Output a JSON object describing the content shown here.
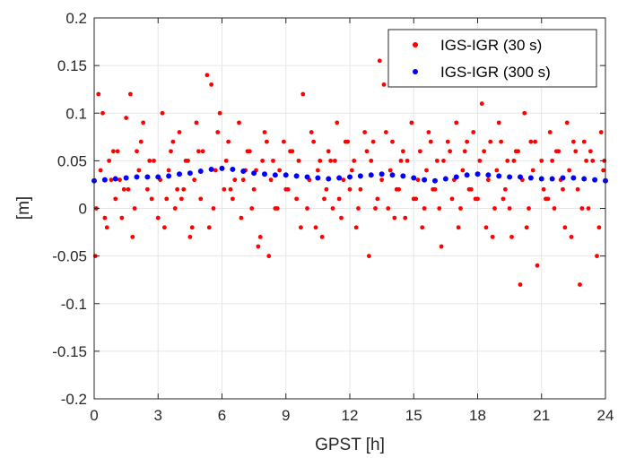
{
  "chart_data": {
    "type": "scatter",
    "title": "",
    "xlabel": "GPST [h]",
    "ylabel": "[m]",
    "xlim": [
      0,
      24
    ],
    "ylim": [
      -0.2,
      0.2
    ],
    "xticks": [
      0,
      3,
      6,
      9,
      12,
      15,
      18,
      21,
      24
    ],
    "xtick_labels": [
      "0",
      "3",
      "6",
      "9",
      "12",
      "15",
      "18",
      "21",
      "24"
    ],
    "yticks": [
      0.2,
      0.15,
      0.1,
      0.05,
      0,
      -0.05,
      -0.1,
      -0.15,
      -0.2
    ],
    "ytick_labels": [
      "0.2",
      "0.15",
      "0.1",
      "0.05",
      "0",
      "-0.05",
      "-0.1",
      "-0.15",
      "-0.2"
    ],
    "grid": true,
    "legend_position": "top-right",
    "series": [
      {
        "name": "IGS-IGR (30 s)",
        "color": "#ff0000",
        "marker": "dot",
        "sampling_interval_h": 0.008333,
        "x": [
          0.2,
          0.4,
          0.8,
          1.1,
          1.5,
          1.7,
          2.0,
          2.3,
          2.8,
          3.2,
          3.6,
          4.0,
          4.4,
          4.8,
          5.3,
          5.5,
          5.9,
          6.3,
          6.8,
          7.2,
          7.6,
          8.0,
          8.4,
          8.9,
          9.3,
          9.8,
          10.2,
          10.6,
          11.0,
          11.4,
          11.8,
          12.2,
          12.7,
          13.1,
          13.4,
          13.6,
          14.0,
          14.4,
          14.9,
          15.3,
          15.7,
          16.1,
          16.6,
          17.0,
          17.4,
          17.8,
          18.2,
          18.6,
          19.0,
          19.4,
          19.8,
          20.2,
          20.5,
          21.0,
          21.4,
          21.8,
          22.2,
          22.6,
          23.0,
          23.4,
          23.8,
          0.1,
          0.6,
          1.0,
          1.3,
          1.9,
          2.5,
          3.0,
          3.4,
          3.8,
          4.2,
          4.6,
          5.0,
          5.6,
          6.1,
          6.5,
          7.0,
          7.4,
          7.8,
          8.2,
          8.6,
          9.0,
          9.5,
          10.0,
          10.4,
          10.8,
          11.2,
          11.6,
          12.0,
          12.4,
          12.9,
          13.3,
          13.8,
          14.2,
          14.6,
          15.1,
          15.5,
          15.9,
          16.3,
          16.8,
          17.2,
          17.6,
          18.0,
          18.4,
          18.8,
          19.2,
          19.6,
          20.0,
          20.4,
          20.8,
          21.2,
          21.6,
          22.0,
          22.4,
          22.8,
          23.2,
          23.6,
          0.3,
          0.7,
          1.2,
          1.6,
          2.1,
          2.6,
          3.1,
          3.5,
          3.9,
          4.3,
          4.7,
          5.1,
          5.7,
          6.2,
          6.6,
          7.1,
          7.5,
          7.9,
          8.3,
          8.7,
          9.1,
          9.6,
          10.1,
          10.5,
          10.9,
          11.3,
          11.7,
          12.1,
          12.5,
          13.0,
          13.5,
          13.9,
          14.3,
          14.7,
          15.2,
          15.6,
          16.0,
          16.4,
          16.9,
          17.3,
          17.7,
          18.1,
          18.5,
          18.9,
          19.3,
          19.7,
          20.1,
          20.6,
          21.1,
          21.5,
          21.9,
          22.3,
          22.7,
          23.1,
          23.5,
          23.9,
          0.05,
          0.5,
          0.9,
          1.4,
          1.8,
          2.2,
          2.7,
          3.3,
          3.7,
          4.1,
          4.5,
          4.9,
          5.4,
          5.8,
          6.4,
          6.9,
          7.3,
          7.7,
          8.1,
          8.5,
          9.2,
          9.7,
          10.3,
          10.7,
          11.1,
          11.5,
          11.9,
          12.3,
          12.8,
          13.2,
          13.7,
          14.1,
          14.5,
          15.0,
          15.4,
          15.8,
          16.2,
          16.7,
          17.1,
          17.5,
          17.9,
          18.3,
          18.7,
          19.1,
          19.5,
          19.9,
          20.3,
          20.7,
          21.3,
          21.7,
          22.1,
          22.5,
          22.9,
          23.3,
          23.7,
          23.95
        ],
        "y": [
          0.12,
          0.1,
          0.03,
          0.06,
          0.095,
          0.12,
          0.06,
          0.09,
          0.05,
          0.1,
          0.06,
          0.08,
          0.05,
          0.09,
          0.14,
          0.13,
          0.1,
          0.07,
          0.09,
          0.06,
          0.04,
          0.08,
          0.05,
          0.07,
          0.06,
          0.12,
          0.08,
          0.05,
          0.06,
          0.09,
          0.07,
          0.05,
          0.08,
          0.07,
          0.155,
          0.13,
          0.07,
          0.05,
          0.09,
          0.06,
          0.08,
          0.05,
          0.07,
          0.09,
          0.06,
          0.08,
          0.11,
          0.07,
          0.09,
          0.05,
          0.06,
          0.1,
          0.07,
          0.05,
          0.08,
          0.06,
          0.09,
          0.06,
          0.07,
          0.05,
          0.08,
          0.0,
          -0.02,
          0.01,
          -0.01,
          0.0,
          0.02,
          -0.01,
          0.01,
          0.0,
          0.02,
          -0.02,
          0.01,
          0.0,
          0.02,
          0.01,
          0.03,
          0.0,
          -0.03,
          -0.05,
          0.0,
          0.02,
          0.01,
          0.0,
          -0.02,
          0.01,
          0.0,
          -0.01,
          0.02,
          0.0,
          -0.05,
          0.01,
          0.0,
          0.02,
          -0.01,
          0.01,
          0.0,
          0.02,
          -0.04,
          0.01,
          0.0,
          0.02,
          0.01,
          -0.02,
          0.0,
          0.01,
          -0.03,
          -0.08,
          0.0,
          -0.06,
          0.01,
          0.0,
          0.02,
          -0.03,
          -0.08,
          0.0,
          -0.05,
          0.04,
          0.05,
          0.03,
          0.02,
          0.04,
          0.05,
          0.03,
          0.04,
          0.02,
          0.05,
          0.03,
          0.06,
          0.04,
          0.05,
          0.03,
          0.04,
          0.02,
          0.05,
          0.03,
          0.04,
          0.02,
          0.05,
          0.03,
          0.04,
          0.02,
          0.05,
          0.03,
          0.04,
          0.02,
          0.05,
          0.03,
          0.04,
          0.02,
          0.05,
          0.03,
          0.04,
          0.02,
          0.05,
          0.03,
          0.04,
          0.02,
          0.05,
          0.03,
          0.04,
          0.02,
          0.05,
          0.03,
          0.04,
          0.02,
          0.05,
          0.03,
          0.04,
          0.02,
          0.05,
          0.03,
          0.04,
          -0.05,
          -0.01,
          0.06,
          0.02,
          -0.03,
          0.07,
          0.01,
          -0.02,
          0.07,
          0.01,
          -0.03,
          0.06,
          -0.02,
          0.08,
          0.02,
          -0.01,
          0.06,
          -0.04,
          0.07,
          0.0,
          0.06,
          -0.02,
          0.07,
          -0.03,
          0.05,
          0.01,
          0.07,
          -0.02,
          0.06,
          0.0,
          0.08,
          -0.01,
          0.06,
          0.01,
          -0.02,
          0.07,
          0.0,
          0.06,
          -0.02,
          0.07,
          0.01,
          0.06,
          -0.03,
          0.07,
          0.0,
          0.06,
          -0.02,
          0.07,
          0.01,
          0.06,
          -0.02,
          0.07,
          0.0,
          0.06,
          -0.02,
          0.05
        ]
      },
      {
        "name": "IGS-IGR (300 s)",
        "color": "#0000ff",
        "marker": "dot",
        "sampling_interval_h": 0.083333,
        "x": [
          0,
          0.5,
          1.0,
          1.5,
          2.0,
          2.5,
          3.0,
          3.5,
          4.0,
          4.5,
          5.0,
          5.5,
          6.0,
          6.5,
          7.0,
          7.5,
          8.0,
          8.5,
          9.0,
          9.5,
          10.0,
          10.5,
          11.0,
          11.5,
          12.0,
          12.5,
          13.0,
          13.5,
          14.0,
          14.5,
          15.0,
          15.5,
          16.0,
          16.5,
          17.0,
          17.5,
          18.0,
          18.5,
          19.0,
          19.5,
          20.0,
          20.5,
          21.0,
          21.5,
          22.0,
          22.5,
          23.0,
          23.5,
          24.0
        ],
        "y": [
          0.029,
          0.03,
          0.031,
          0.032,
          0.033,
          0.033,
          0.033,
          0.034,
          0.036,
          0.037,
          0.039,
          0.041,
          0.042,
          0.041,
          0.039,
          0.037,
          0.036,
          0.035,
          0.035,
          0.034,
          0.033,
          0.032,
          0.031,
          0.032,
          0.033,
          0.034,
          0.035,
          0.036,
          0.035,
          0.034,
          0.032,
          0.03,
          0.029,
          0.031,
          0.033,
          0.035,
          0.036,
          0.035,
          0.034,
          0.033,
          0.033,
          0.032,
          0.031,
          0.031,
          0.032,
          0.032,
          0.031,
          0.03,
          0.029
        ]
      }
    ]
  }
}
